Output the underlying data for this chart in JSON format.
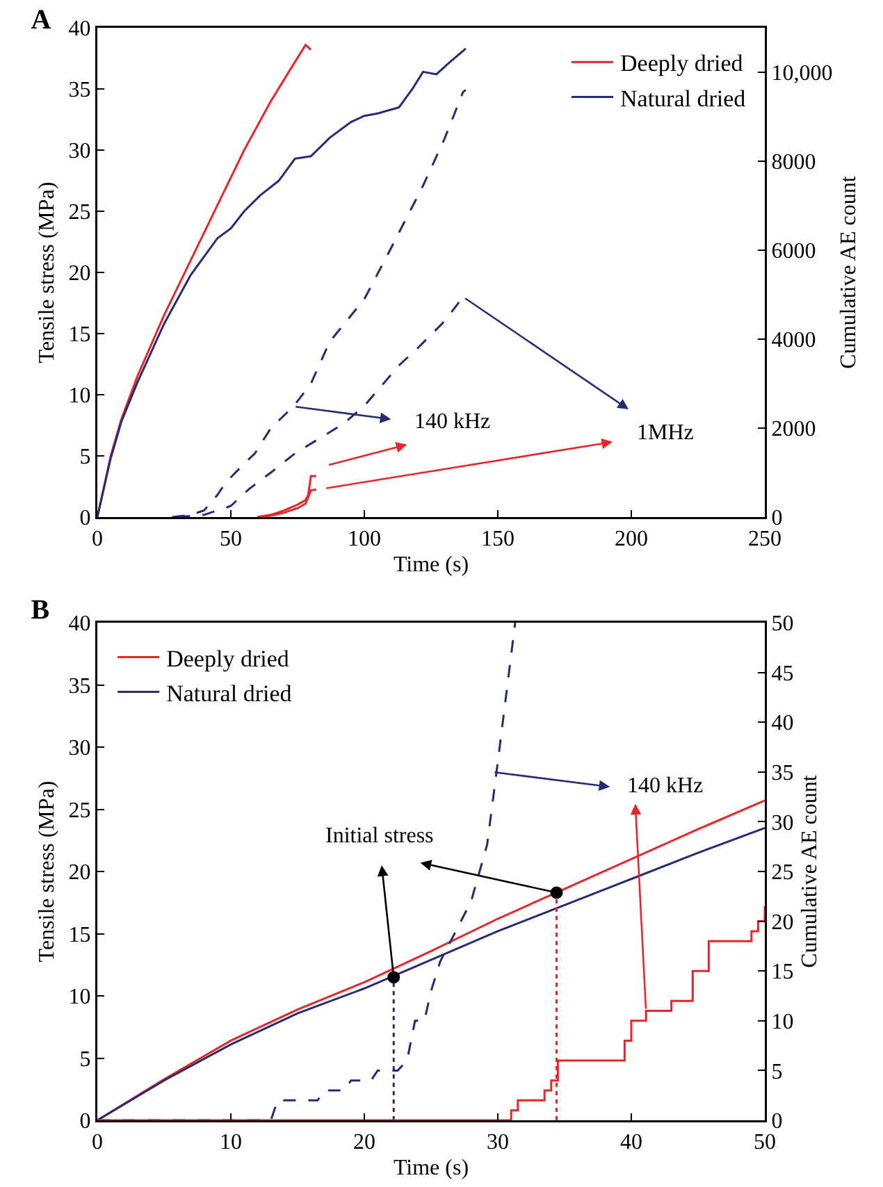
{
  "chart_data": [
    {
      "type": "line",
      "title": "A",
      "xlabel": "Time (s)",
      "ylabel": "Tensile stress (MPa)",
      "y2label": "Cumulative AE count",
      "legend": "top right",
      "grid": false,
      "xlim": [
        0,
        250
      ],
      "xticks": [
        0,
        50,
        100,
        150,
        200,
        250
      ],
      "ylim": [
        0,
        40
      ],
      "yticks": [
        0,
        5,
        10,
        15,
        20,
        25,
        30,
        35,
        40
      ],
      "y2lim": [
        0,
        11000
      ],
      "y2ticks": [
        0,
        2000,
        4000,
        6000,
        8000,
        {
          "value": 10000,
          "label": "10,000"
        }
      ],
      "annotations": [
        "140 kHz",
        "1MHz"
      ],
      "series": [
        {
          "name": "Deeply dried",
          "color": "#e8262a",
          "line_style": "solid",
          "x": [
            0,
            5,
            9,
            15,
            25,
            35,
            45,
            55,
            65,
            72,
            78,
            80
          ],
          "values": [
            0,
            5,
            8,
            11.5,
            16.5,
            21,
            25.5,
            30,
            34,
            36.5,
            38.6,
            38.2
          ]
        },
        {
          "name": "Natural dried",
          "color": "#262b73",
          "line_style": "solid",
          "x": [
            0,
            5,
            9,
            15,
            25,
            35,
            45,
            50,
            55,
            61,
            68,
            74,
            80,
            87,
            95,
            100,
            105,
            113,
            118,
            122,
            127,
            131,
            138
          ],
          "values": [
            0,
            4.8,
            7.8,
            11,
            15.8,
            19.8,
            22.8,
            23.6,
            25,
            26.3,
            27.5,
            29.3,
            29.5,
            31,
            32.3,
            32.8,
            33,
            33.5,
            35,
            36.4,
            36.2,
            37,
            38.3
          ]
        },
        {
          "color": "#262b73",
          "axis": "y2",
          "line_style": "dashed",
          "x": [
            28,
            35,
            40,
            45,
            48,
            55,
            59,
            65,
            73.5,
            80,
            87,
            100,
            109,
            122,
            130,
            137,
            138
          ],
          "values": [
            0,
            50,
            150,
            500,
            770,
            1200,
            1430,
            2000,
            2490,
            3000,
            3940,
            4900,
            5930,
            7450,
            8500,
            9560,
            9600
          ]
        },
        {
          "color": "#262b73",
          "axis": "y2",
          "line_style": "dashed",
          "x": [
            30,
            40,
            50,
            57,
            65,
            74,
            80,
            92,
            100,
            113,
            120,
            130,
            137
          ],
          "values": [
            0,
            50,
            250,
            640,
            1000,
            1430,
            1650,
            2090,
            2500,
            3410,
            3800,
            4400,
            4950
          ]
        },
        {
          "color": "#e8262a",
          "axis": "y2",
          "line_style": "solid",
          "x": [
            60,
            65,
            70,
            75,
            78,
            79,
            80,
            82
          ],
          "values": [
            0,
            50,
            150,
            280,
            380,
            500,
            920,
            920
          ]
        },
        {
          "color": "#e8262a",
          "axis": "y2",
          "line_style": "solid",
          "x": [
            60,
            65,
            70,
            75,
            78,
            80,
            82
          ],
          "values": [
            0,
            30,
            100,
            200,
            300,
            600,
            620
          ]
        }
      ]
    },
    {
      "type": "line",
      "title": "B",
      "xlabel": "Time (s)",
      "ylabel": "Tensile stress (MPa)",
      "y2label": "Cumulative AE count",
      "legend": "top left",
      "grid": false,
      "xlim": [
        0,
        50
      ],
      "xticks": [
        0,
        10,
        20,
        30,
        40,
        50
      ],
      "ylim": [
        0,
        40
      ],
      "yticks": [
        0,
        5,
        10,
        15,
        20,
        25,
        30,
        35,
        40
      ],
      "y2lim": [
        0,
        50
      ],
      "y2ticks": [
        0,
        5,
        10,
        15,
        20,
        25,
        30,
        35,
        40,
        45,
        50
      ],
      "annotations": [
        "Initial stress",
        "140 kHz"
      ],
      "series": [
        {
          "name": "Deeply dried",
          "color": "#e8262a",
          "line_style": "solid",
          "x": [
            0,
            5,
            10,
            15,
            20,
            25,
            30,
            35,
            40,
            45,
            50
          ],
          "values": [
            0,
            3.3,
            6.4,
            8.9,
            11.1,
            13.6,
            16.2,
            18.6,
            21,
            23.4,
            25.7
          ]
        },
        {
          "name": "Natural dried",
          "color": "#262b73",
          "line_style": "solid",
          "x": [
            0,
            5,
            10,
            15,
            20,
            25,
            30,
            35,
            40,
            45,
            50
          ],
          "values": [
            0,
            3.2,
            6.1,
            8.6,
            10.6,
            12.9,
            15.2,
            17.3,
            19.4,
            21.5,
            23.5
          ]
        },
        {
          "color": "#262b73",
          "axis": "y2",
          "line_style": "dashed",
          "x": [
            0,
            13,
            13.5,
            16.5,
            17,
            18.5,
            19,
            20.5,
            21,
            22.5,
            23.2,
            23.8,
            24.5,
            25,
            25.7,
            26.7,
            28,
            29.2,
            30,
            31.3
          ],
          "values": [
            0,
            0,
            2,
            2,
            3,
            3,
            4,
            4,
            5,
            5,
            6,
            10,
            10,
            13,
            16,
            18.6,
            22,
            27.7,
            36,
            50
          ]
        },
        {
          "color": "#e8262a",
          "axis": "y2",
          "line_style": "solid",
          "type": "step",
          "x": [
            0,
            30.5,
            31,
            31.5,
            33,
            33.5,
            34,
            34.5,
            39.2,
            39.5,
            40,
            41.1,
            42.5,
            43,
            44,
            44.6,
            45.8,
            48.5,
            49,
            49.5,
            50
          ],
          "values": [
            0,
            0,
            1,
            2,
            2,
            3,
            4,
            6,
            6,
            8,
            10,
            11,
            11,
            12,
            12,
            15,
            18,
            18,
            19,
            20,
            21.5
          ]
        },
        {
          "color": "#262b73",
          "line_style": "dotted",
          "x": [
            22.2,
            22.2
          ],
          "values": [
            0,
            11.5
          ]
        },
        {
          "color": "#e8262a",
          "line_style": "dotted",
          "x": [
            34.4,
            34.4
          ],
          "values": [
            0,
            18.3
          ]
        },
        {
          "type": "scatter",
          "color": "#000000",
          "marker": "circle",
          "x": [
            22.2,
            34.4
          ],
          "values": [
            11.5,
            18.3
          ]
        }
      ]
    }
  ]
}
